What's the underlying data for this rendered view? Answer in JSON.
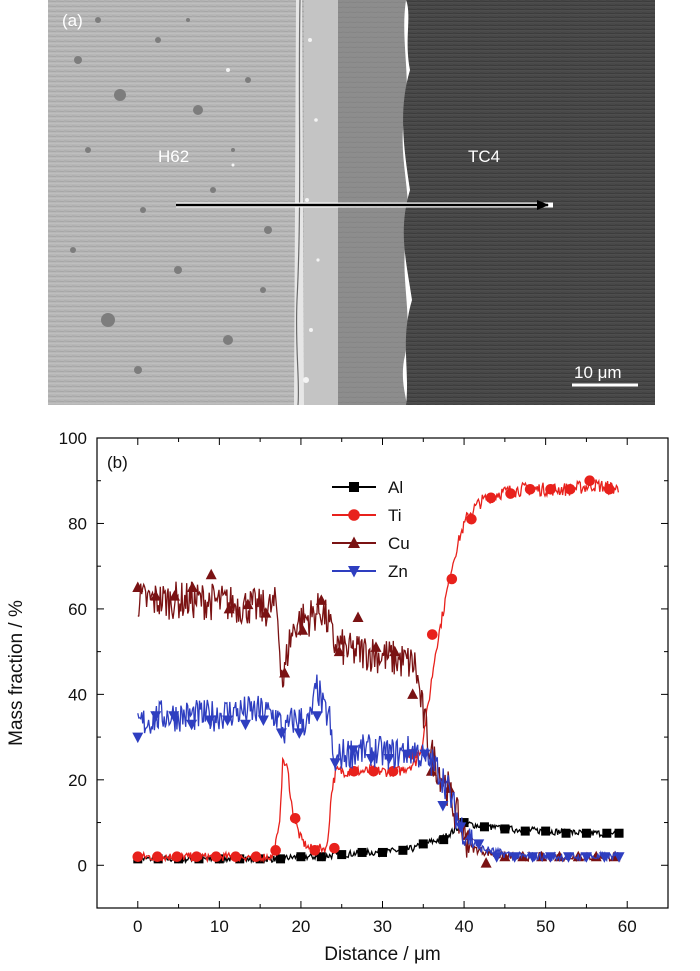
{
  "panel_a": {
    "label": "(a)",
    "region_labels": [
      "H62",
      "TC4"
    ],
    "scale_bar": "10 μm"
  },
  "chart_data": {
    "type": "line",
    "panel_label": "(b)",
    "xlabel": "Distance / μm",
    "ylabel": "Mass fraction / %",
    "xlim": [
      -5,
      65
    ],
    "ylim": [
      -10,
      100
    ],
    "xticks": [
      0,
      10,
      20,
      30,
      40,
      50,
      60
    ],
    "yticks": [
      0,
      20,
      40,
      60,
      80,
      100
    ],
    "grid": false,
    "legend": "top-center",
    "series": [
      {
        "name": "Al",
        "color": "#000000",
        "marker": "square",
        "x": [
          0,
          5,
          10,
          15,
          17,
          20,
          22,
          25,
          28,
          30,
          32,
          34,
          35,
          36,
          37,
          38,
          39,
          40,
          41,
          43,
          45,
          50,
          55,
          59
        ],
        "y": [
          1.5,
          1.5,
          1.5,
          1.5,
          1.5,
          2,
          2,
          2.5,
          3,
          3,
          3.5,
          4,
          5,
          5.5,
          6,
          7,
          8.5,
          10,
          9.5,
          9,
          8.5,
          8,
          7.5,
          7.5
        ],
        "marker_x": [
          0,
          2.5,
          5,
          7.5,
          10,
          12.5,
          15,
          17.5,
          20,
          22.5,
          25,
          27.5,
          30,
          32.5,
          35,
          37.5,
          40,
          42.5,
          45,
          47.5,
          50,
          52.5,
          55,
          57.5,
          59
        ],
        "marker_y": [
          1.5,
          1.5,
          1.5,
          1.5,
          1.5,
          1.5,
          1.5,
          1.5,
          2,
          2,
          2.5,
          3,
          3,
          3.5,
          5,
          6,
          10,
          9,
          8.5,
          8,
          8,
          7.5,
          7.5,
          7.5,
          7.5
        ]
      },
      {
        "name": "Ti",
        "color": "#e8211c",
        "marker": "circle",
        "x": [
          0,
          5,
          10,
          15,
          16.5,
          17.3,
          17.8,
          18.4,
          19,
          20,
          21,
          22,
          23.2,
          23.8,
          24.3,
          25,
          28,
          30,
          32,
          34,
          34.8,
          35.5,
          36.5,
          37.5,
          38.5,
          39.5,
          40.5,
          42,
          44,
          47,
          50,
          53,
          56,
          59
        ],
        "y": [
          2,
          2,
          2,
          2,
          2,
          8,
          25,
          22,
          12,
          6,
          4,
          4,
          4,
          18,
          22,
          22,
          22,
          22,
          22,
          24,
          28,
          36,
          50,
          60,
          70,
          77,
          82,
          85,
          87,
          88,
          88,
          88,
          89,
          88
        ],
        "marker_x": [
          0,
          2.4,
          4.8,
          7.2,
          9.6,
          12,
          14.5,
          16.9,
          19.3,
          21.7,
          24.1,
          26.5,
          28.9,
          31.3,
          33.7,
          36.1,
          38.5,
          40.9,
          43.3,
          45.7,
          48.1,
          50.6,
          53,
          55.4,
          57.8
        ],
        "marker_y": [
          2,
          2,
          2,
          2,
          2,
          2,
          2,
          3.5,
          11,
          3.5,
          4,
          22,
          22,
          22,
          26,
          54,
          67,
          81,
          86,
          87,
          88,
          88,
          88,
          90,
          88
        ]
      },
      {
        "name": "Cu",
        "color": "#7a1213",
        "marker": "triangle-up",
        "x": [
          0,
          4,
          8,
          12,
          16,
          17,
          17.8,
          18.5,
          19.5,
          21,
          22.5,
          23.5,
          24,
          26,
          28,
          30,
          32,
          34,
          35,
          36,
          37,
          38,
          39,
          40,
          41,
          43,
          45,
          50,
          55,
          59
        ],
        "y": [
          62,
          62,
          62,
          61,
          60,
          61,
          42,
          52,
          57,
          58,
          60,
          56,
          52,
          50,
          50,
          49,
          48,
          47,
          35,
          26,
          22,
          18,
          12,
          7,
          4,
          3,
          2,
          2,
          2,
          2
        ],
        "marker_x": [
          0,
          2.2,
          4.5,
          6.7,
          9,
          11.2,
          13.5,
          15.7,
          18,
          20.2,
          22.5,
          24.7,
          27,
          29.2,
          31.5,
          33.7,
          36,
          38.2,
          40.5,
          42.7,
          45,
          47.2,
          49.5,
          51.7,
          54,
          56.2,
          58.5
        ],
        "marker_y": [
          65,
          63,
          63,
          65,
          68,
          60,
          61,
          59,
          45,
          55,
          62,
          50,
          58,
          51,
          50,
          40,
          22,
          18,
          7,
          0.5,
          2,
          2,
          2,
          2,
          2,
          2,
          2
        ]
      },
      {
        "name": "Zn",
        "color": "#2e3ec0",
        "marker": "triangle-down",
        "x": [
          0,
          3,
          6,
          9,
          12,
          15,
          17,
          18,
          19,
          20,
          21,
          22,
          22.8,
          23.5,
          24,
          25,
          28,
          31,
          34,
          35,
          36,
          37,
          38,
          39,
          40,
          41,
          42,
          44,
          47,
          50,
          55,
          59
        ],
        "y": [
          33,
          35,
          35,
          35,
          36,
          36,
          35,
          31,
          34,
          34,
          33,
          42,
          36,
          35,
          23,
          26,
          27,
          26,
          27,
          25,
          24,
          22,
          18,
          12,
          8,
          6,
          4,
          3,
          2,
          2,
          2,
          2
        ],
        "marker_x": [
          0,
          2.2,
          4.4,
          6.6,
          8.8,
          11,
          13.2,
          15.4,
          17.6,
          19.8,
          22,
          24.2,
          26.4,
          28.6,
          30.8,
          33,
          35.2,
          37.4,
          39.6,
          41.8,
          44,
          46.2,
          48.4,
          50.6,
          52.8,
          55,
          57.2,
          59
        ],
        "marker_y": [
          30,
          35,
          35,
          33,
          34,
          34,
          33,
          34,
          31,
          31,
          35,
          24,
          27,
          25,
          25,
          26,
          26,
          14,
          9,
          5,
          2,
          2,
          2,
          2,
          2,
          2,
          2,
          2
        ]
      }
    ]
  }
}
